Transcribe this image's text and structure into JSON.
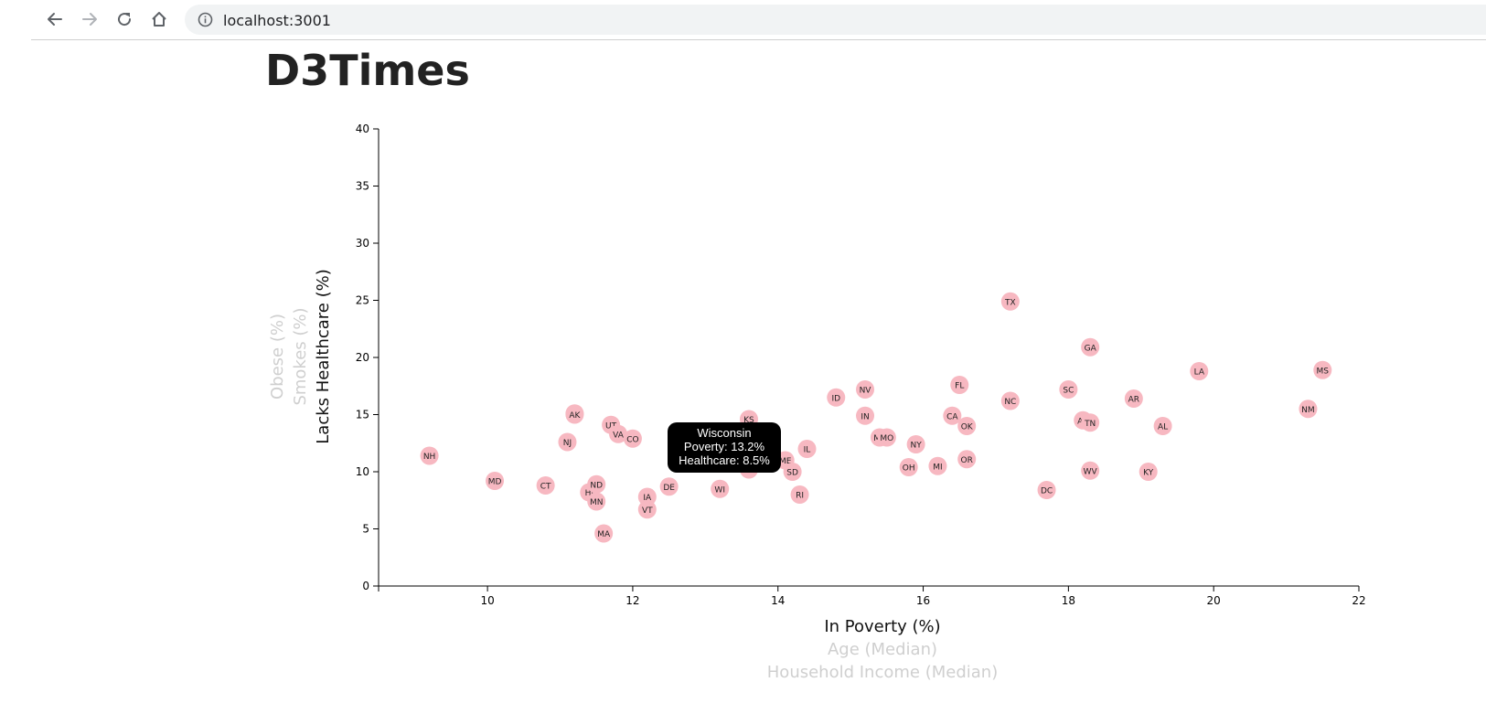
{
  "browser": {
    "url": "localhost:3001",
    "icons": [
      "back-arrow-icon",
      "forward-arrow-icon",
      "reload-icon",
      "home-icon",
      "info-icon"
    ]
  },
  "page": {
    "title": "D3Times"
  },
  "tooltip": {
    "state": "Wisconsin",
    "poverty_line": "Poverty: 13.2%",
    "healthcare_line": "Healthcare: 8.5%"
  },
  "axis_labels": {
    "x": [
      {
        "text": "In Poverty (%)",
        "active": true
      },
      {
        "text": "Age (Median)",
        "active": false
      },
      {
        "text": "Household Income (Median)",
        "active": false
      }
    ],
    "y": [
      {
        "text": "Lacks Healthcare (%)",
        "active": true
      },
      {
        "text": "Smokes (%)",
        "active": false
      },
      {
        "text": "Obese (%)",
        "active": false
      }
    ]
  },
  "colors": {
    "marker": "#f7b8c1",
    "active_label": "#111111",
    "inactive_label": "#cfcfcf",
    "tooltip_bg": "#000000"
  },
  "chart_data": {
    "type": "scatter",
    "xlim": [
      8.5,
      22
    ],
    "ylim": [
      0,
      40
    ],
    "x_ticks": [
      10,
      12,
      14,
      16,
      18,
      20,
      22
    ],
    "y_ticks": [
      0,
      5,
      10,
      15,
      20,
      25,
      30,
      35,
      40
    ],
    "x_tick_labels": [
      "10",
      "12",
      "14",
      "16",
      "18",
      "20",
      "22"
    ],
    "y_tick_labels": [
      "0",
      "5",
      "10",
      "15",
      "20",
      "25",
      "30",
      "35",
      "40"
    ],
    "xlabel": "In Poverty (%)",
    "ylabel": "Lacks Healthcare (%)",
    "grid": false,
    "points": [
      {
        "abbr": "NH",
        "x": 9.2,
        "y": 11.4
      },
      {
        "abbr": "MD",
        "x": 10.1,
        "y": 9.2
      },
      {
        "abbr": "CT",
        "x": 10.8,
        "y": 8.8
      },
      {
        "abbr": "NJ",
        "x": 11.1,
        "y": 12.6
      },
      {
        "abbr": "WY",
        "x": 11.2,
        "y": 15.1
      },
      {
        "abbr": "AK",
        "x": 11.2,
        "y": 15.0
      },
      {
        "abbr": "HI",
        "x": 11.4,
        "y": 8.2
      },
      {
        "abbr": "ND",
        "x": 11.5,
        "y": 8.9
      },
      {
        "abbr": "MN",
        "x": 11.5,
        "y": 7.4
      },
      {
        "abbr": "MA",
        "x": 11.6,
        "y": 4.6
      },
      {
        "abbr": "UT",
        "x": 11.7,
        "y": 14.1
      },
      {
        "abbr": "VA",
        "x": 11.8,
        "y": 13.3
      },
      {
        "abbr": "CO",
        "x": 12.0,
        "y": 12.9
      },
      {
        "abbr": "IA",
        "x": 12.2,
        "y": 7.8
      },
      {
        "abbr": "VT",
        "x": 12.2,
        "y": 6.7
      },
      {
        "abbr": "DE",
        "x": 12.5,
        "y": 8.7
      },
      {
        "abbr": "WI",
        "x": 13.2,
        "y": 8.5
      },
      {
        "abbr": "KS",
        "x": 13.6,
        "y": 14.6
      },
      {
        "abbr": "NE",
        "x": 13.6,
        "y": 10.2
      },
      {
        "abbr": "ME",
        "x": 14.1,
        "y": 11.0
      },
      {
        "abbr": "SD",
        "x": 14.2,
        "y": 10.0
      },
      {
        "abbr": "RI",
        "x": 14.3,
        "y": 8.0
      },
      {
        "abbr": "IL",
        "x": 14.4,
        "y": 12.0
      },
      {
        "abbr": "ID",
        "x": 14.8,
        "y": 16.5
      },
      {
        "abbr": "NV",
        "x": 15.2,
        "y": 17.2
      },
      {
        "abbr": "IN",
        "x": 15.2,
        "y": 14.9
      },
      {
        "abbr": "MT",
        "x": 15.4,
        "y": 13.0
      },
      {
        "abbr": "MO",
        "x": 15.5,
        "y": 13.0
      },
      {
        "abbr": "OH",
        "x": 15.8,
        "y": 10.4
      },
      {
        "abbr": "NY",
        "x": 15.9,
        "y": 12.4
      },
      {
        "abbr": "MI",
        "x": 16.2,
        "y": 10.5
      },
      {
        "abbr": "CA",
        "x": 16.4,
        "y": 14.9
      },
      {
        "abbr": "FL",
        "x": 16.5,
        "y": 17.6
      },
      {
        "abbr": "OK",
        "x": 16.6,
        "y": 14.0
      },
      {
        "abbr": "OR",
        "x": 16.6,
        "y": 11.1
      },
      {
        "abbr": "TX",
        "x": 17.2,
        "y": 24.9
      },
      {
        "abbr": "NC",
        "x": 17.2,
        "y": 16.2
      },
      {
        "abbr": "DC",
        "x": 17.7,
        "y": 8.4
      },
      {
        "abbr": "SC",
        "x": 18.0,
        "y": 17.2
      },
      {
        "abbr": "AZ",
        "x": 18.2,
        "y": 14.5
      },
      {
        "abbr": "TN",
        "x": 18.3,
        "y": 14.3
      },
      {
        "abbr": "GA",
        "x": 18.3,
        "y": 20.9
      },
      {
        "abbr": "WV",
        "x": 18.3,
        "y": 10.1
      },
      {
        "abbr": "AR",
        "x": 18.9,
        "y": 16.4
      },
      {
        "abbr": "KY",
        "x": 19.1,
        "y": 10.0
      },
      {
        "abbr": "AL",
        "x": 19.3,
        "y": 14.0
      },
      {
        "abbr": "LA",
        "x": 19.8,
        "y": 18.8
      },
      {
        "abbr": "NM",
        "x": 21.3,
        "y": 15.5
      },
      {
        "abbr": "MS",
        "x": 21.5,
        "y": 18.9
      }
    ]
  }
}
